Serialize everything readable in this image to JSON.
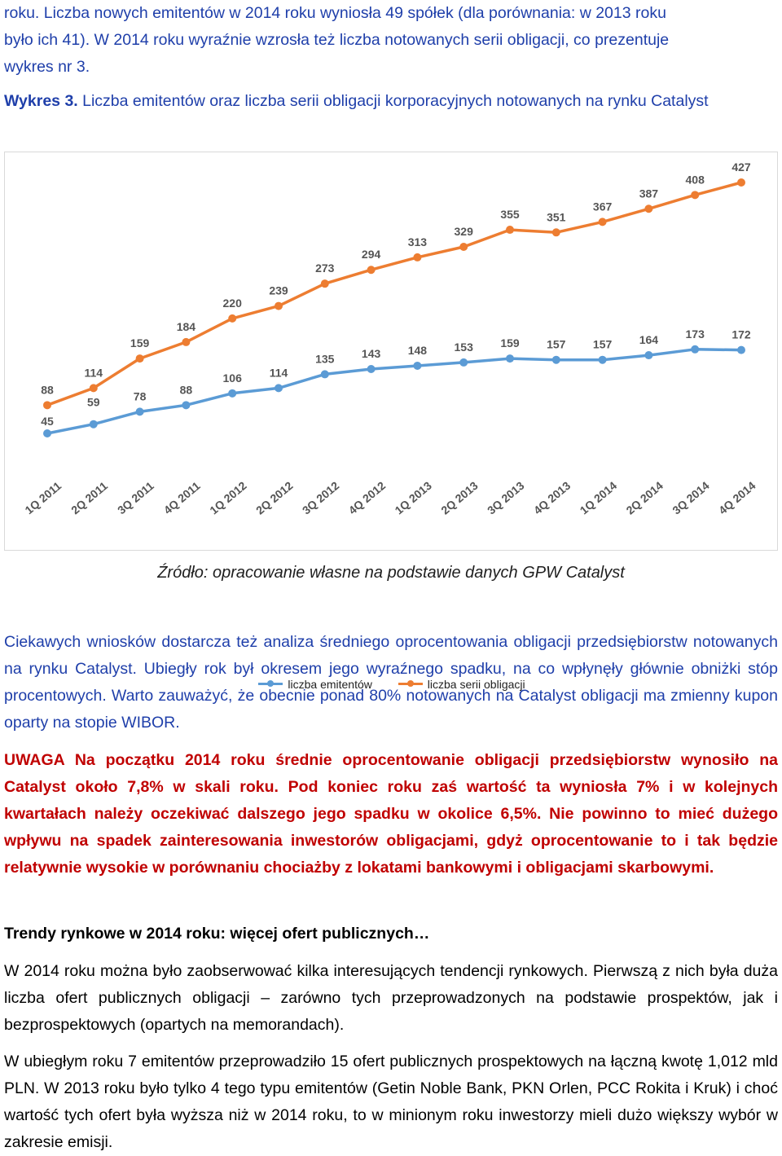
{
  "text": {
    "intro_line1": "roku. Liczba nowych emitentów w 2014 roku wyniosła 49 spółek (dla porównania: w 2013 roku",
    "intro_line2": "było ich 41). W 2014 roku wyraźnie wzrosła też liczba notowanych serii obligacji, co prezentuje",
    "intro_line3": "wykres nr 3.",
    "figure_label": "Wykres 3.",
    "figure_title": "Liczba emitentów oraz liczba serii obligacji korporacyjnych notowanych na rynku Catalyst",
    "source": "Źródło: opracowanie własne na podstawie danych GPW Catalyst",
    "para2": "Ciekawych wniosków dostarcza też analiza średniego oprocentowania obligacji przedsiębiorstw notowanych na rynku Catalyst. Ubiegły rok był okresem jego wyraźnego spadku, na co wpłynęły głównie obniżki stóp procentowych. Warto zauważyć, że obecnie ponad 80% notowanych na Catalyst obligacji ma zmienny kupon oparty na stopie WIBOR.",
    "para3": "UWAGA Na początku 2014 roku średnie oprocentowanie obligacji przedsiębiorstw wynosiło na Catalyst około 7,8% w skali roku. Pod koniec roku zaś wartość ta wyniosła 7% i w kolejnych kwartałach należy oczekiwać dalszego jego spadku w okolice 6,5%. Nie powinno to mieć dużego wpływu na spadek zainteresowania inwestorów obligacjami, gdyż oprocentowanie to i tak będzie relatywnie wysokie w porównaniu chociażby z lokatami bankowymi i obligacjami skarbowymi.",
    "heading2": "Trendy rynkowe w 2014 roku: więcej ofert publicznych…",
    "para4": "W 2014 roku można było zaobserwować kilka interesujących tendencji rynkowych. Pierwszą z nich była duża liczba ofert publicznych obligacji – zarówno tych przeprowadzonych na podstawie prospektów, jak i bezprospektowych (opartych na memorandach).",
    "para5": "W ubiegłym roku 7 emitentów przeprowadziło 15 ofert publicznych prospektowych na łączną kwotę 1,012 mld PLN. W 2013 roku było tylko 4 tego typu emitentów (Getin Noble Bank, PKN Orlen, PCC Rokita i Kruk) i choć wartość tych ofert była wyższa niż w 2014 roku, to w minionym roku inwestorzy mieli dużo większy wybór w zakresie emisji."
  },
  "chart_data": {
    "type": "line",
    "categories": [
      "1Q 2011",
      "2Q 2011",
      "3Q 2011",
      "4Q 2011",
      "1Q 2012",
      "2Q 2012",
      "3Q 2012",
      "4Q 2012",
      "1Q 2013",
      "2Q 2013",
      "3Q 2013",
      "4Q 2013",
      "1Q 2014",
      "2Q 2014",
      "3Q 2014",
      "4Q 2014"
    ],
    "series": [
      {
        "name": "liczba emitentów",
        "color": "#5b9bd5",
        "values": [
          45,
          59,
          78,
          88,
          106,
          114,
          135,
          143,
          148,
          153,
          159,
          157,
          157,
          164,
          173,
          172
        ]
      },
      {
        "name": "liczba serii obligacji",
        "color": "#ed7d31",
        "values": [
          88,
          114,
          159,
          184,
          220,
          239,
          273,
          294,
          313,
          329,
          355,
          351,
          367,
          387,
          408,
          427
        ]
      }
    ],
    "grid": false,
    "legend": "bottom",
    "data_labels": true
  }
}
